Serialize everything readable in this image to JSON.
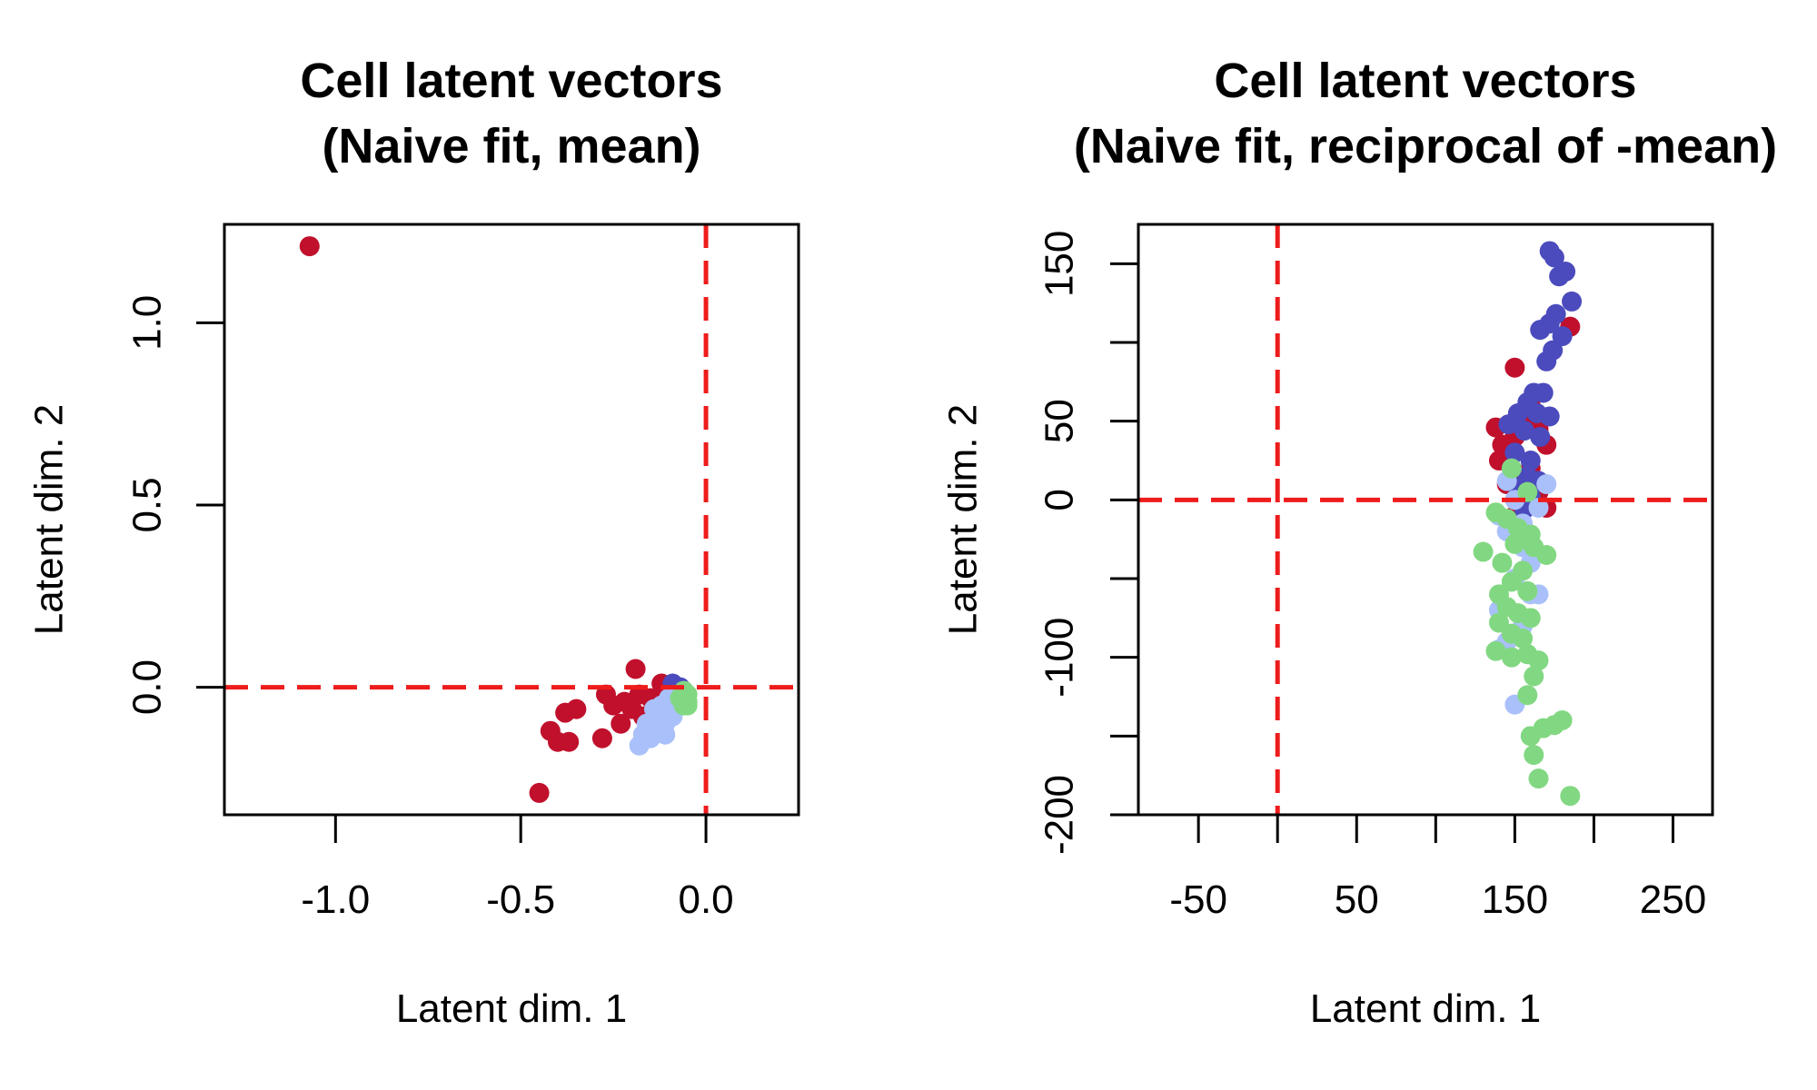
{
  "chart_data": [
    {
      "type": "scatter",
      "title": [
        "Cell latent vectors",
        "(Naive fit, mean)"
      ],
      "xlabel": "Latent dim. 1",
      "ylabel": "Latent dim. 2",
      "xlim": [
        -1.3,
        0.25
      ],
      "ylim": [
        -0.35,
        1.27
      ],
      "xticks": [
        -1.0,
        -0.5,
        0.0
      ],
      "xtick_labels": [
        "-1.0",
        "-0.5",
        "0.0"
      ],
      "yticks": [
        0.0,
        0.5,
        1.0
      ],
      "ytick_labels": [
        "0.0",
        "0.5",
        "1.0"
      ],
      "ref_lines": {
        "x": 0.0,
        "y": 0.0,
        "color": "#EE1C1C",
        "style": "dashed"
      },
      "grid": false,
      "legend": "none",
      "series": [
        {
          "color": "#C0102C",
          "points": [
            [
              -1.07,
              1.21
            ],
            [
              -0.45,
              -0.29
            ],
            [
              -0.42,
              -0.12
            ],
            [
              -0.4,
              -0.15
            ],
            [
              -0.38,
              -0.07
            ],
            [
              -0.37,
              -0.15
            ],
            [
              -0.35,
              -0.06
            ],
            [
              -0.28,
              -0.14
            ],
            [
              -0.27,
              -0.02
            ],
            [
              -0.25,
              -0.05
            ],
            [
              -0.23,
              -0.1
            ],
            [
              -0.22,
              -0.04
            ],
            [
              -0.2,
              -0.06
            ],
            [
              -0.19,
              0.05
            ],
            [
              -0.18,
              -0.02
            ],
            [
              -0.17,
              -0.08
            ],
            [
              -0.15,
              -0.03
            ],
            [
              -0.14,
              -0.05
            ],
            [
              -0.12,
              0.01
            ],
            [
              -0.11,
              -0.01
            ],
            [
              -0.1,
              -0.04
            ],
            [
              -0.09,
              -0.02
            ],
            [
              -0.08,
              0.0
            ]
          ]
        },
        {
          "color": "#4B4BBD",
          "points": [
            [
              -0.09,
              0.01
            ],
            [
              -0.08,
              -0.02
            ],
            [
              -0.07,
              0.0
            ],
            [
              -0.07,
              -0.03
            ],
            [
              -0.08,
              -0.05
            ],
            [
              -0.06,
              -0.01
            ],
            [
              -0.09,
              -0.03
            ],
            [
              -0.06,
              -0.04
            ]
          ]
        },
        {
          "color": "#A9C0FA",
          "points": [
            [
              -0.18,
              -0.16
            ],
            [
              -0.17,
              -0.13
            ],
            [
              -0.16,
              -0.1
            ],
            [
              -0.15,
              -0.14
            ],
            [
              -0.14,
              -0.09
            ],
            [
              -0.13,
              -0.12
            ],
            [
              -0.12,
              -0.07
            ],
            [
              -0.11,
              -0.1
            ],
            [
              -0.1,
              -0.06
            ],
            [
              -0.09,
              -0.08
            ],
            [
              -0.08,
              -0.05
            ],
            [
              -0.12,
              -0.05
            ],
            [
              -0.14,
              -0.06
            ],
            [
              -0.1,
              -0.03
            ],
            [
              -0.16,
              -0.12
            ],
            [
              -0.11,
              -0.13
            ]
          ]
        },
        {
          "color": "#82D882",
          "points": [
            [
              -0.06,
              -0.03
            ],
            [
              -0.05,
              -0.04
            ],
            [
              -0.06,
              -0.05
            ],
            [
              -0.05,
              -0.02
            ],
            [
              -0.07,
              -0.03
            ],
            [
              -0.06,
              -0.01
            ],
            [
              -0.05,
              -0.05
            ]
          ]
        }
      ]
    },
    {
      "type": "scatter",
      "title": [
        "Cell latent vectors",
        "(Naive fit, reciprocal of -mean)"
      ],
      "xlabel": "Latent dim. 1",
      "ylabel": "Latent dim. 2",
      "xlim": [
        -88,
        275
      ],
      "ylim": [
        -200,
        175
      ],
      "xticks": [
        -50,
        0,
        50,
        100,
        150,
        200,
        250
      ],
      "xtick_labels": [
        "-50",
        "",
        "50",
        "",
        "150",
        "",
        "250"
      ],
      "yticks": [
        -200,
        -150,
        -100,
        -50,
        0,
        50,
        100,
        150
      ],
      "ytick_labels": [
        "-200",
        "",
        "-100",
        "",
        "0",
        "50",
        "",
        "150"
      ],
      "ref_lines": {
        "x": 0,
        "y": 0,
        "color": "#EE1C1C",
        "style": "dashed"
      },
      "grid": false,
      "legend": "none",
      "series": [
        {
          "color": "#C0102C",
          "points": [
            [
              150,
              84
            ],
            [
              185,
              110
            ],
            [
              138,
              46
            ],
            [
              142,
              35
            ],
            [
              145,
              30
            ],
            [
              150,
              40
            ],
            [
              155,
              50
            ],
            [
              160,
              60
            ],
            [
              165,
              45
            ],
            [
              170,
              35
            ],
            [
              160,
              20
            ],
            [
              150,
              15
            ],
            [
              165,
              5
            ],
            [
              155,
              -5
            ],
            [
              145,
              10
            ],
            [
              170,
              -5
            ],
            [
              150,
              -10
            ],
            [
              140,
              25
            ]
          ]
        },
        {
          "color": "#4B4BBD",
          "points": [
            [
              172,
              158
            ],
            [
              175,
              154
            ],
            [
              178,
              142
            ],
            [
              182,
              145
            ],
            [
              186,
              126
            ],
            [
              176,
              118
            ],
            [
              172,
              112
            ],
            [
              166,
              108
            ],
            [
              180,
              104
            ],
            [
              174,
              95
            ],
            [
              170,
              88
            ],
            [
              162,
              68
            ],
            [
              168,
              68
            ],
            [
              158,
              62
            ],
            [
              152,
              55
            ],
            [
              164,
              55
            ],
            [
              172,
              53
            ],
            [
              146,
              48
            ],
            [
              156,
              44
            ],
            [
              166,
              40
            ],
            [
              150,
              30
            ],
            [
              160,
              25
            ],
            [
              148,
              20
            ],
            [
              158,
              15
            ],
            [
              165,
              12
            ],
            [
              152,
              8
            ],
            [
              160,
              2
            ],
            [
              156,
              -6
            ]
          ]
        },
        {
          "color": "#A9C0FA",
          "points": [
            [
              145,
              12
            ],
            [
              150,
              0
            ],
            [
              140,
              -10
            ],
            [
              145,
              -20
            ],
            [
              155,
              -30
            ],
            [
              160,
              -40
            ],
            [
              150,
              -50
            ],
            [
              165,
              -60
            ],
            [
              140,
              -70
            ],
            [
              155,
              -80
            ],
            [
              145,
              -90
            ],
            [
              140,
              -95
            ],
            [
              160,
              -60
            ],
            [
              165,
              -5
            ],
            [
              170,
              10
            ],
            [
              150,
              -130
            ],
            [
              155,
              -15
            ]
          ]
        },
        {
          "color": "#82D882",
          "points": [
            [
              148,
              20
            ],
            [
              158,
              5
            ],
            [
              138,
              -8
            ],
            [
              145,
              -12
            ],
            [
              152,
              -18
            ],
            [
              160,
              -22
            ],
            [
              130,
              -33
            ],
            [
              150,
              -28
            ],
            [
              162,
              -30
            ],
            [
              170,
              -35
            ],
            [
              142,
              -40
            ],
            [
              155,
              -45
            ],
            [
              148,
              -52
            ],
            [
              140,
              -60
            ],
            [
              158,
              -58
            ],
            [
              145,
              -68
            ],
            [
              152,
              -72
            ],
            [
              140,
              -78
            ],
            [
              160,
              -75
            ],
            [
              148,
              -85
            ],
            [
              155,
              -88
            ],
            [
              138,
              -96
            ],
            [
              148,
              -100
            ],
            [
              158,
              -98
            ],
            [
              165,
              -102
            ],
            [
              162,
              -112
            ],
            [
              158,
              -124
            ],
            [
              160,
              -150
            ],
            [
              168,
              -145
            ],
            [
              175,
              -143
            ],
            [
              180,
              -140
            ],
            [
              162,
              -162
            ],
            [
              165,
              -177
            ],
            [
              185,
              -188
            ]
          ]
        }
      ]
    }
  ]
}
